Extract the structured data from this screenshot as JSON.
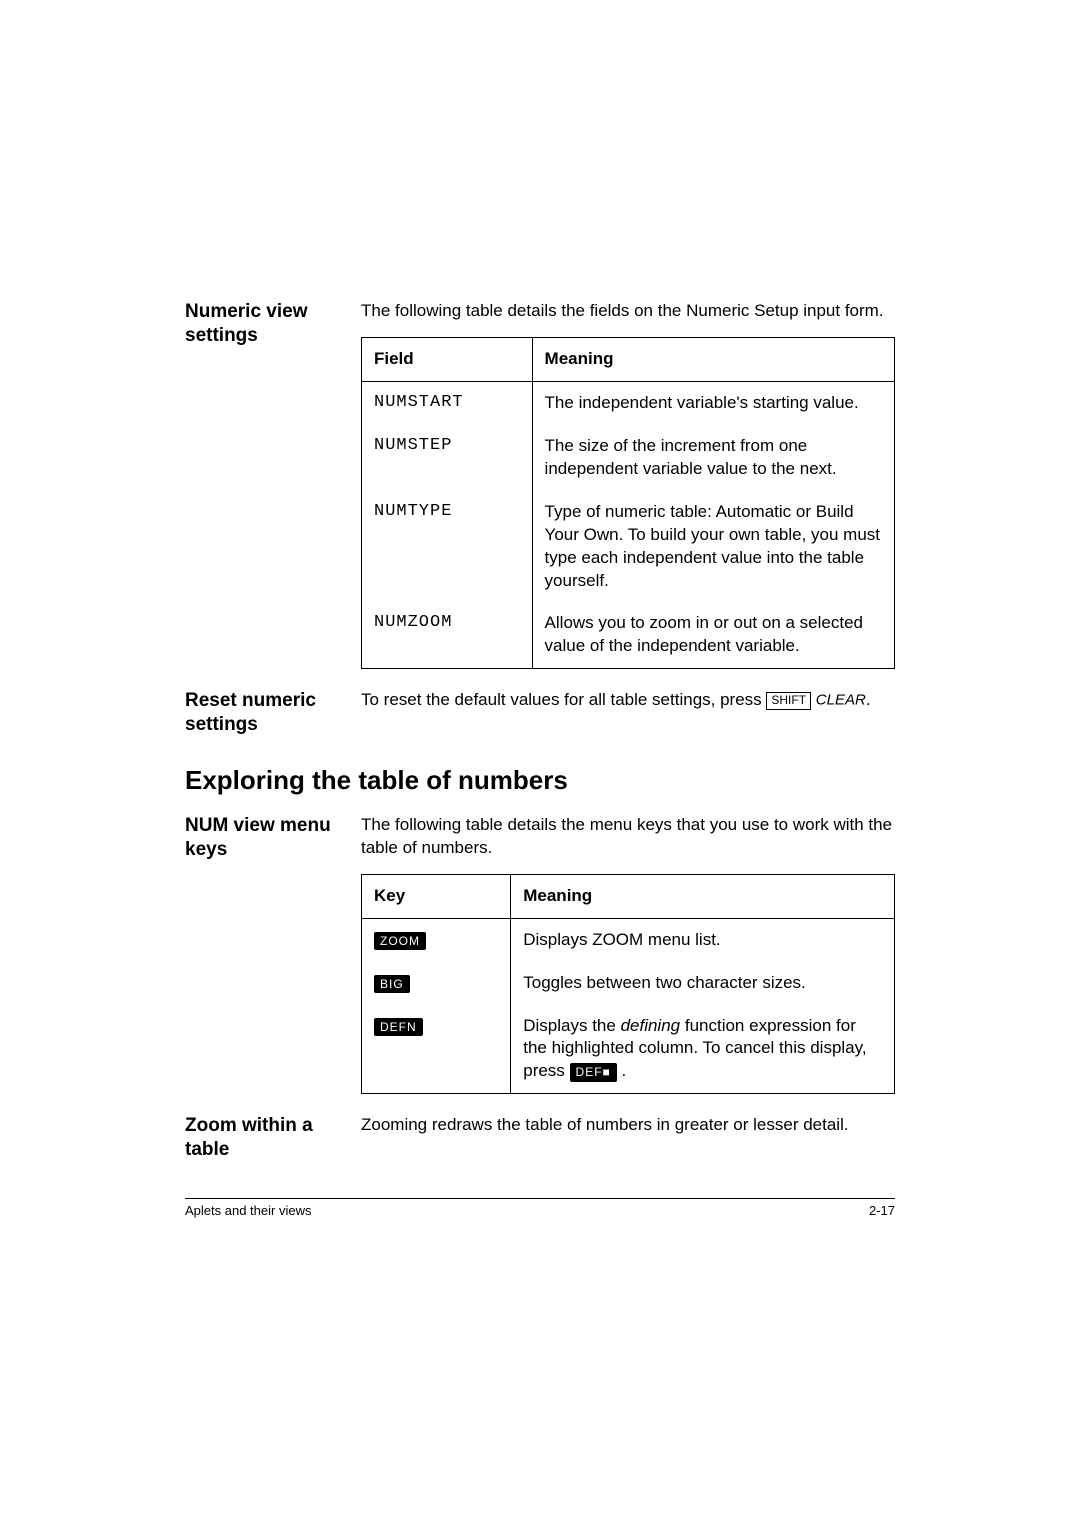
{
  "section1": {
    "heading": "Numeric view settings",
    "intro": "The following table details the fields on the Numeric Setup input form.",
    "table": {
      "headers": [
        "Field",
        "Meaning"
      ],
      "rows": [
        [
          "NUMSTART",
          "The independent variable's starting value."
        ],
        [
          "NUMSTEP",
          "The size of the increment from one independent variable value to the next."
        ],
        [
          "NUMTYPE",
          "Type of numeric table: Automatic or Build Your Own. To build your own table, you must type each independent value into the table yourself."
        ],
        [
          "NUMZOOM",
          "Allows you to zoom in or out on a selected value of the independent variable."
        ]
      ]
    }
  },
  "section2": {
    "heading": "Reset numeric settings",
    "text": "To reset the default values for all table settings, press ",
    "shift_key": "SHIFT",
    "clear_label": "CLEAR",
    "period": "."
  },
  "big_heading": "Exploring the table of numbers",
  "section3": {
    "heading": "NUM view menu keys",
    "intro": "The following table details the menu keys that you use to work with the table of numbers.",
    "table": {
      "headers": [
        "Key",
        "Meaning"
      ],
      "zoom_key": "ZOOM",
      "zoom_meaning": "Displays ZOOM menu list.",
      "big_key": "BIG",
      "big_meaning": "Toggles between two character sizes.",
      "defn_key": "DEFN",
      "defn_pre": "Displays the ",
      "defn_italic": "defining",
      "defn_post": " function expression for the highlighted column. To cancel this display, press ",
      "defn_cancel_key": "DEF■",
      "defn_period": " ."
    }
  },
  "section4": {
    "heading": "Zoom within a table",
    "text": "Zooming redraws the table of numbers in greater or lesser detail."
  },
  "footer": {
    "left": "Aplets and their views",
    "right": "2-17"
  }
}
